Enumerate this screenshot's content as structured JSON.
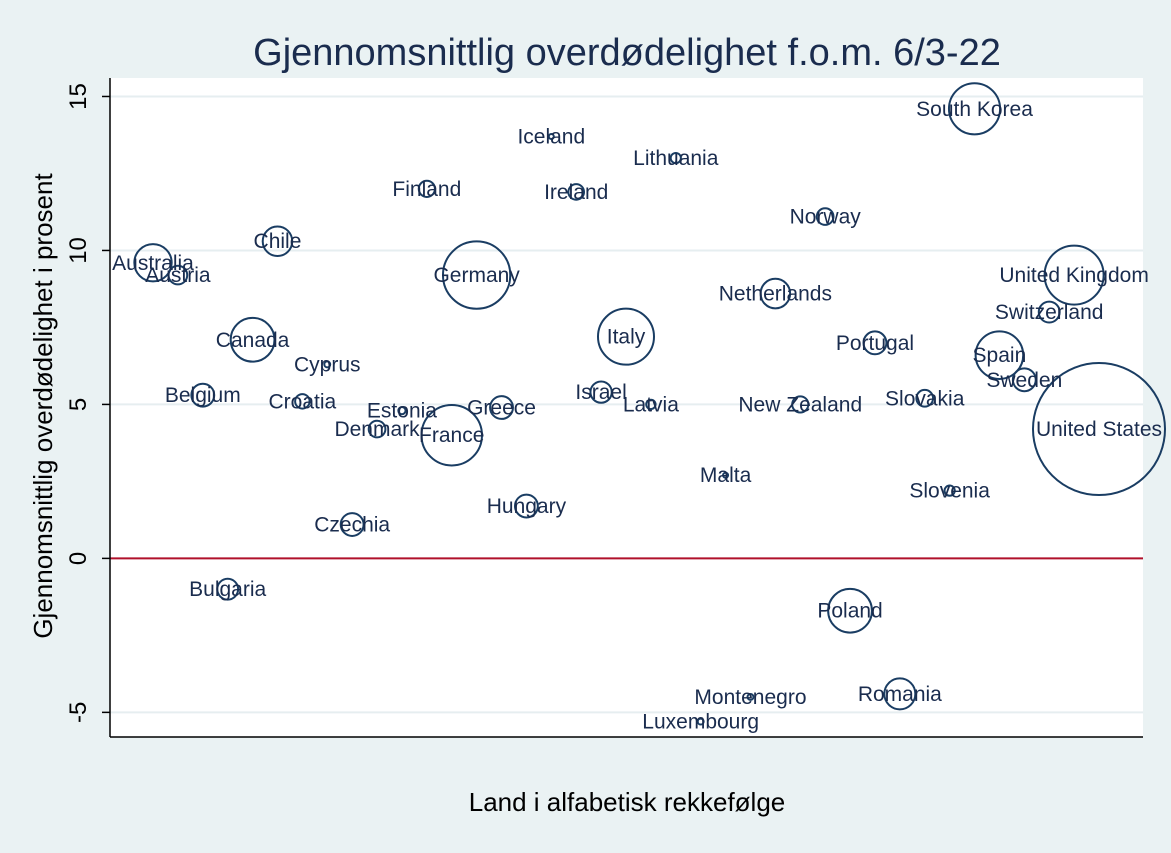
{
  "chart_data": {
    "type": "scatter",
    "title": "Gjennomsnittlig overdødelighet f.o.m. 6/3-22",
    "xlabel": "Land i alfabetisk rekkefølge",
    "ylabel": "Gjennomsnittlig overdødelighet i prosent",
    "ylim": [
      -5.8,
      15.6
    ],
    "yticks": [
      -5,
      0,
      5,
      10,
      15
    ],
    "grid": true,
    "reference_line": {
      "y": 0,
      "color": "#b0102b"
    },
    "colors": {
      "marker": "#1a3d63",
      "plot_bg": "#ffffff",
      "page_bg": "#eaf2f3",
      "grid": "#e6eef0"
    },
    "points": [
      {
        "label": "Australia",
        "x": 1,
        "y": 9.6,
        "size": 8
      },
      {
        "label": "Austria",
        "x": 2,
        "y": 9.2,
        "size": 2
      },
      {
        "label": "Belgium",
        "x": 3,
        "y": 5.3,
        "size": 3
      },
      {
        "label": "Bulgaria",
        "x": 4,
        "y": -1.0,
        "size": 2.5
      },
      {
        "label": "Canada",
        "x": 5,
        "y": 7.1,
        "size": 11
      },
      {
        "label": "Chile",
        "x": 6,
        "y": 10.3,
        "size": 5
      },
      {
        "label": "Croatia",
        "x": 7,
        "y": 5.1,
        "size": 1.2
      },
      {
        "label": "Cyprus",
        "x": 8,
        "y": 6.3,
        "size": 0.2
      },
      {
        "label": "Czechia",
        "x": 9,
        "y": 1.1,
        "size": 3
      },
      {
        "label": "Denmark",
        "x": 10,
        "y": 4.2,
        "size": 1.6
      },
      {
        "label": "Estonia",
        "x": 11,
        "y": 4.8,
        "size": 0.3
      },
      {
        "label": "Finland",
        "x": 12,
        "y": 12.0,
        "size": 1.5
      },
      {
        "label": "France",
        "x": 13,
        "y": 4.0,
        "size": 21
      },
      {
        "label": "Germany",
        "x": 14,
        "y": 9.2,
        "size": 26
      },
      {
        "label": "Greece",
        "x": 15,
        "y": 4.9,
        "size": 3
      },
      {
        "label": "Hungary",
        "x": 16,
        "y": 1.7,
        "size": 3
      },
      {
        "label": "Iceland",
        "x": 17,
        "y": 13.7,
        "size": 0.1
      },
      {
        "label": "Ireland",
        "x": 18,
        "y": 11.9,
        "size": 1.4
      },
      {
        "label": "Israel",
        "x": 19,
        "y": 5.4,
        "size": 2.6
      },
      {
        "label": "Italy",
        "x": 20,
        "y": 7.2,
        "size": 18
      },
      {
        "label": "Latvia",
        "x": 21,
        "y": 5.0,
        "size": 0.5
      },
      {
        "label": "Lithuania",
        "x": 22,
        "y": 13.0,
        "size": 0.6
      },
      {
        "label": "Luxembourg",
        "x": 23,
        "y": -5.3,
        "size": 0.2
      },
      {
        "label": "Malta",
        "x": 24,
        "y": 2.7,
        "size": 0.1
      },
      {
        "label": "Montenegro",
        "x": 25,
        "y": -4.5,
        "size": 0.2
      },
      {
        "label": "Netherlands",
        "x": 26,
        "y": 8.6,
        "size": 5
      },
      {
        "label": "New Zealand",
        "x": 27,
        "y": 5.0,
        "size": 1.5
      },
      {
        "label": "Norway",
        "x": 28,
        "y": 11.1,
        "size": 1.6
      },
      {
        "label": "Poland",
        "x": 29,
        "y": -1.7,
        "size": 11
      },
      {
        "label": "Portugal",
        "x": 30,
        "y": 7.0,
        "size": 3
      },
      {
        "label": "Romania",
        "x": 31,
        "y": -4.4,
        "size": 5.5
      },
      {
        "label": "Slovakia",
        "x": 32,
        "y": 5.2,
        "size": 1.6
      },
      {
        "label": "Slovenia",
        "x": 33,
        "y": 2.2,
        "size": 0.6
      },
      {
        "label": "South Korea",
        "x": 34,
        "y": 14.6,
        "size": 15
      },
      {
        "label": "Spain",
        "x": 35,
        "y": 6.6,
        "size": 13
      },
      {
        "label": "Sweden",
        "x": 36,
        "y": 5.8,
        "size": 3
      },
      {
        "label": "Switzerland",
        "x": 37,
        "y": 8.0,
        "size": 2.5
      },
      {
        "label": "United Kingdom",
        "x": 38,
        "y": 9.2,
        "size": 20
      },
      {
        "label": "United States",
        "x": 39,
        "y": 4.2,
        "size": 100
      }
    ]
  }
}
